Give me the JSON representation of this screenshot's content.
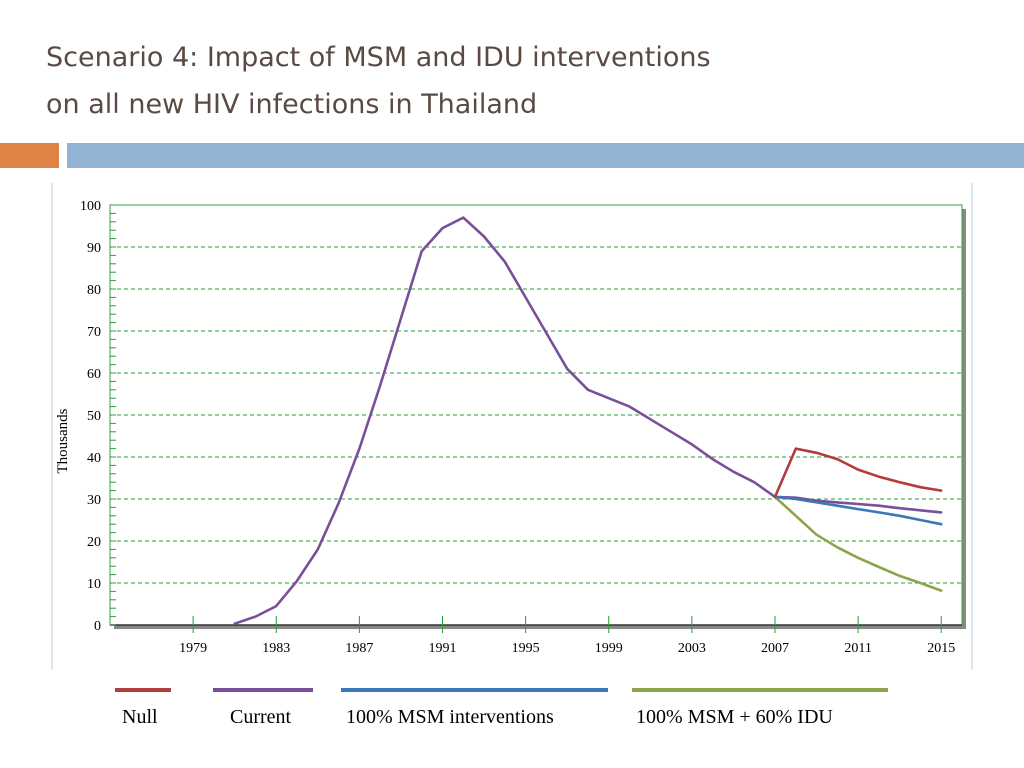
{
  "slide": {
    "title_line1": "Scenario 4: Impact of MSM and IDU interventions",
    "title_line2": "on all new HIV infections in Thailand"
  },
  "colors": {
    "title": "#5a4a42",
    "accent_orange": "#de8345",
    "accent_blue": "#93b3d4",
    "grid": "#22a033",
    "plot_border": "#3c9a3c"
  },
  "chart_data": {
    "type": "line",
    "title": "",
    "xlabel": "",
    "ylabel": "Thousands",
    "xlim": [
      1975,
      2016
    ],
    "ylim": [
      0,
      100
    ],
    "x_ticks": [
      1979,
      1983,
      1987,
      1991,
      1995,
      1999,
      2003,
      2007,
      2011,
      2015
    ],
    "y_ticks": [
      0,
      10,
      20,
      30,
      40,
      50,
      60,
      70,
      80,
      90,
      100
    ],
    "grid": true,
    "legend_position": "bottom",
    "series": [
      {
        "name": "Null",
        "color": "#b23b3b",
        "x": [
          2007,
          2008,
          2009,
          2010,
          2011,
          2012,
          2013,
          2014,
          2015
        ],
        "y": [
          30.5,
          42,
          41,
          39.5,
          37,
          35.3,
          34,
          32.8,
          32
        ]
      },
      {
        "name": "Current",
        "color": "#7a4f9a",
        "x": [
          1981,
          1982,
          1983,
          1984,
          1985,
          1986,
          1987,
          1988,
          1989,
          1990,
          1991,
          1992,
          1993,
          1994,
          1995,
          1996,
          1997,
          1998,
          1999,
          2000,
          2001,
          2002,
          2003,
          2004,
          2005,
          2006,
          2007,
          2008,
          2009,
          2010,
          2011,
          2012,
          2013,
          2014,
          2015
        ],
        "y": [
          0.3,
          2,
          4.5,
          10.5,
          18,
          29,
          42,
          57,
          73,
          89,
          94.5,
          97,
          92.5,
          86.5,
          78,
          69.5,
          61,
          56,
          54,
          52,
          49,
          46,
          43,
          39.5,
          36.5,
          34,
          30.5,
          30.3,
          29.6,
          29.2,
          28.8,
          28.4,
          27.8,
          27.3,
          26.8
        ]
      },
      {
        "name": "100% MSM interventions",
        "color": "#3a78b6",
        "x": [
          2007,
          2008,
          2009,
          2010,
          2011,
          2012,
          2013,
          2014,
          2015
        ],
        "y": [
          30.5,
          30,
          29.2,
          28.4,
          27.6,
          26.8,
          26,
          25,
          24
        ]
      },
      {
        "name": "100% MSM + 60% IDU",
        "color": "#8aa54a",
        "x": [
          2007,
          2008,
          2009,
          2010,
          2011,
          2012,
          2013,
          2014,
          2015
        ],
        "y": [
          30.5,
          26,
          21.5,
          18.5,
          16,
          13.8,
          11.7,
          10,
          8.2
        ]
      }
    ]
  }
}
